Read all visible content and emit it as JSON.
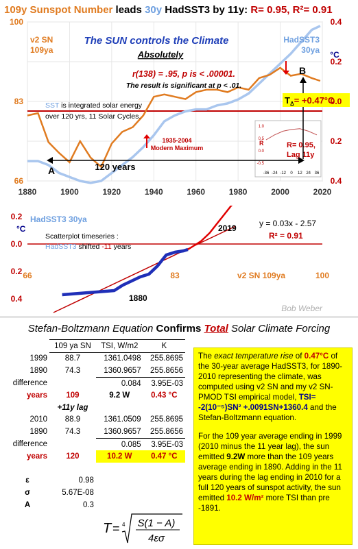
{
  "header": {
    "t1": "109y",
    "t2": " Sunspot  Number ",
    "t3": "leads ",
    "t4": "30y",
    "t5": " HadSST3",
    "t6": " by 11y: ",
    "t7": "R= 0.95, R²= 0.91"
  },
  "top_chart": {
    "left_series_label": "v2 SN",
    "left_series_sub": "109ya",
    "right_series_label": "HadSST3",
    "right_series_sub": "30ya",
    "right_unit": "°C",
    "headline": "The SUN controls the Climate",
    "subheadline": "Absolutely",
    "stat1": "r(138) = .95, p is < .00001.",
    "stat2": "The result is significant at p < .01.",
    "note_sst": "SST",
    "note_rest1": " is integrated solar energy",
    "note_line2": "over 120 yrs, 11 Solar Cycles.",
    "modern_max1": "1935-2004",
    "modern_max2": "Modern Maximum",
    "span_label": "120 years",
    "point_a": "A",
    "point_b": "B",
    "delta_label": "T",
    "delta_sub": "Δ",
    "delta_value": "= +0.47°C",
    "inset_ylabel": "R",
    "inset_r": "R= 0.95,",
    "inset_lag": "Lag 11y",
    "inset_yticks": [
      "1.0",
      "0.5",
      "0.0",
      "-0.5"
    ],
    "inset_xticks": [
      "-36",
      "-24",
      "-12",
      "0",
      "12",
      "24",
      "36"
    ]
  },
  "scatter_chart": {
    "label": "HadSST3 30ya",
    "unit": "°C",
    "note1": "Scatterplot timeseries :",
    "note2a": "HadSST3",
    "note2b": " shifted ",
    "note2c": "-11",
    "note2d": " years",
    "equation": "y = 0.03x - 2.57",
    "r2": "R² = 0.91",
    "year_end": "2019",
    "year_start": "1880",
    "x_axis_label": "v2 SN 109ya",
    "author": "Bob Weber"
  },
  "bottom": {
    "title_a": "Stefan-Boltzmann Equation ",
    "title_b": "Confirms ",
    "title_c": "Total",
    "title_d": " Solar Climate Forcing",
    "head": [
      "109 ya SN",
      "TSI, W/m2",
      "K"
    ],
    "r1": [
      "1999",
      "88.7",
      "1361.0498",
      "255.8695"
    ],
    "r2": [
      "1890",
      "74.3",
      "1360.9657",
      "255.8656"
    ],
    "r3": [
      "difference",
      "0.084",
      "3.95E-03"
    ],
    "r4": [
      "years",
      "109",
      "9.2 W",
      "0.43 °C"
    ],
    "lag": "+11y lag",
    "r5": [
      "2010",
      "88.9",
      "1361.0509",
      "255.8695"
    ],
    "r6": [
      "1890",
      "74.3",
      "1360.9657",
      "255.8656"
    ],
    "r7": [
      "difference",
      "0.085",
      "3.95E-03"
    ],
    "r8": [
      "years",
      "120",
      "10.2 W",
      "0.47 °C"
    ],
    "c1": [
      "ε",
      "0.98"
    ],
    "c2": [
      "σ",
      "5.67E-08"
    ],
    "c3": [
      "A",
      "0.3"
    ],
    "eq_T": "T",
    "eq_num": "S(1 − A)",
    "eq_den": "4εσ",
    "eq_root": "4",
    "p1a": "The ",
    "p1b": "exact temperature rise",
    "p1c": " of ",
    "p1d": "0.47°C",
    "p1e": " of the 30-year average HadSST3, for 1890-2010 representing the climate, was computed using v2 SN and my v2 SN-PMOD TSI empirical model, ",
    "p1f": "TSI= -2(10⁻⁵)SN² +.0091SN+1360.4",
    "p1g": " and the Stefan-Boltzmann equation.",
    "p2a": "For the 109 year average ending in 1999 (2010 minus the 11 year lag), the sun emitted ",
    "p2b": "9.2W",
    "p2c": " more than the 109 years average ending in 1890. Adding in the 11 years during the lag ending in 2010 for a full 120 years of sunspot activity, the sun emitted ",
    "p2d": "10.2 W/m²",
    "p2e": " more TSI than pre -1891."
  },
  "chart_data": [
    {
      "type": "line",
      "title": "109y Sunspot Number leads 30y HadSST3 by 11y: R= 0.95, R²= 0.91",
      "xlabel": "",
      "xlim": [
        1880,
        2020
      ],
      "x_ticks": [
        1880,
        1900,
        1920,
        1940,
        1960,
        1980,
        2000,
        2020
      ],
      "y_left_label": "v2 SN 109ya",
      "y_left_ticks": [
        66,
        83,
        100
      ],
      "y_left_lim": [
        66,
        100
      ],
      "y_right_label": "HadSST3 30ya °C",
      "y_right_ticks": [
        0.4,
        0.2,
        0.0,
        0.2,
        0.4
      ],
      "y_right_lim": [
        -0.4,
        0.4
      ],
      "grid": true,
      "reference_line_y_left": 83,
      "series": [
        {
          "name": "v2 SN 109ya",
          "color": "#e07b20",
          "x": [
            1880,
            1885,
            1890,
            1895,
            1900,
            1905,
            1910,
            1915,
            1920,
            1925,
            1930,
            1935,
            1940,
            1945,
            1950,
            1955,
            1960,
            1965,
            1970,
            1975,
            1980,
            1985,
            1990,
            1995,
            2000,
            2005,
            2010,
            2015,
            2019
          ],
          "y": [
            80,
            80.5,
            74.3,
            72,
            70,
            74.5,
            71,
            69,
            74,
            76.5,
            77.5,
            80,
            84,
            84.5,
            84,
            83.5,
            85,
            85.5,
            85.5,
            85,
            86,
            85.5,
            88,
            88.7,
            90.2,
            88.5,
            88.9,
            88,
            87.4
          ]
        },
        {
          "name": "HadSST3 30ya",
          "color": "#a9c6ee",
          "x": [
            1880,
            1885,
            1890,
            1895,
            1900,
            1905,
            1910,
            1915,
            1920,
            1925,
            1930,
            1935,
            1940,
            1945,
            1950,
            1955,
            1960,
            1965,
            1970,
            1975,
            1980,
            1985,
            1990,
            1995,
            2000,
            2005,
            2010,
            2015,
            2019
          ],
          "y": [
            -0.3,
            -0.3,
            -0.32,
            -0.36,
            -0.38,
            -0.4,
            -0.41,
            -0.4,
            -0.36,
            -0.32,
            -0.28,
            -0.23,
            -0.17,
            -0.1,
            -0.07,
            -0.05,
            -0.04,
            -0.04,
            -0.02,
            -0.01,
            0.01,
            0.04,
            0.09,
            0.14,
            0.19,
            0.24,
            0.3,
            0.36,
            0.38
          ]
        },
        {
          "name": "inset cross-correlation R vs lag",
          "color": "#c05050",
          "x": [
            -36,
            -24,
            -12,
            0,
            12,
            24,
            36
          ],
          "y": [
            0.5,
            0.7,
            0.85,
            0.92,
            0.95,
            0.85,
            0.7
          ]
        }
      ],
      "annotations": [
        "A",
        "B",
        "120 years",
        "TΔ= +0.47°C",
        "1935-2004 Modern Maximum"
      ]
    },
    {
      "type": "scatter",
      "xlabel": "v2 SN 109ya",
      "ylabel": "HadSST3 30ya °C",
      "xlim": [
        66,
        100
      ],
      "x_ticks": [
        66,
        83,
        100
      ],
      "y_ticks": [
        0.4,
        0.2,
        0.0,
        0.2,
        0.4
      ],
      "ylim": [
        -0.4,
        0.4
      ],
      "trendline": {
        "slope": 0.03,
        "intercept": -2.57,
        "r2": 0.91
      },
      "series": [
        {
          "name": "scatterplot timeseries 1880-2019",
          "x": [
            70,
            72,
            74,
            76,
            77,
            78,
            79,
            80,
            81,
            81.5,
            82,
            83,
            84,
            84.5,
            85,
            85.5,
            86,
            86.5,
            87,
            87.5,
            88,
            88.5,
            89,
            89.5,
            90
          ],
          "y": [
            -0.37,
            -0.36,
            -0.35,
            -0.34,
            -0.3,
            -0.27,
            -0.24,
            -0.22,
            -0.16,
            -0.12,
            -0.08,
            -0.06,
            -0.05,
            -0.04,
            -0.02,
            0.0,
            0.02,
            0.05,
            0.08,
            0.12,
            0.16,
            0.2,
            0.24,
            0.28,
            0.3
          ]
        }
      ]
    }
  ]
}
